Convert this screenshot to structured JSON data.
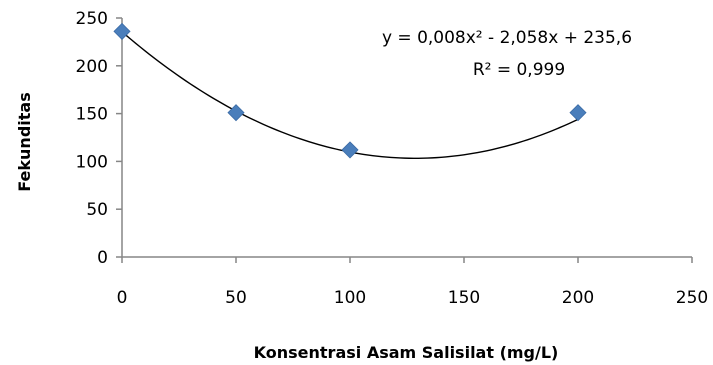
{
  "chart_data": {
    "type": "scatter",
    "title": "",
    "xlabel": "Konsentrasi Asam Salisilat  (mg/L)",
    "ylabel": "Fekunditas",
    "xlim": [
      0,
      250
    ],
    "ylim": [
      0,
      250
    ],
    "x_ticks": [
      "0",
      "50",
      "100",
      "150",
      "200",
      "250"
    ],
    "y_ticks": [
      "0",
      "50",
      "100",
      "150",
      "200",
      "250"
    ],
    "grid": false,
    "series": [
      {
        "x": [
          0,
          50,
          100,
          200
        ],
        "y": [
          236,
          151,
          112,
          151
        ],
        "marker": "diamond",
        "color": "#4a7ebb"
      }
    ],
    "trendline": {
      "type": "polynomial",
      "order": 2,
      "coefficients": [
        0.008,
        -2.058,
        235.6
      ],
      "x_range": [
        0,
        200
      ],
      "color": "#000000",
      "equation": "y = 0,008x² - 2,058x + 235,6",
      "r_squared": "R² = 0,999"
    }
  }
}
